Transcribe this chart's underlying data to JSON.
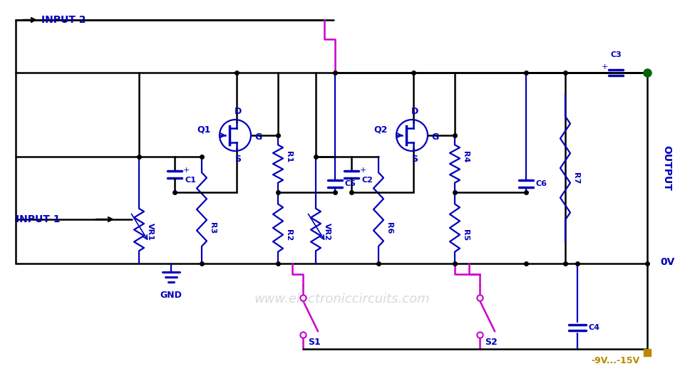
{
  "bg_color": "#ffffff",
  "lc": "#000000",
  "bc": "#0000bb",
  "mc": "#cc00cc",
  "gc": "#006600",
  "yc": "#bb8800",
  "watermark": "www.electroniccircuits.com",
  "labels": {
    "input1": "INPUT 1",
    "input2": "INPUT 2",
    "output": "OUTPUT",
    "gnd": "GND",
    "ov": "0V",
    "neg_v": "-9V...-15V",
    "q1": "Q1",
    "q2": "Q2",
    "c1": "C1",
    "c2": "C2",
    "c3": "C3",
    "c4": "C4",
    "c5": "C5",
    "c6": "C6",
    "r1": "R1",
    "r2": "R2",
    "r3": "R3",
    "r4": "R4",
    "r5": "R5",
    "r6": "R6",
    "r7": "R7",
    "vr1": "VR1",
    "vr2": "VR2",
    "s1": "S1",
    "s2": "S2",
    "D": "D",
    "G": "G",
    "S": "S"
  }
}
